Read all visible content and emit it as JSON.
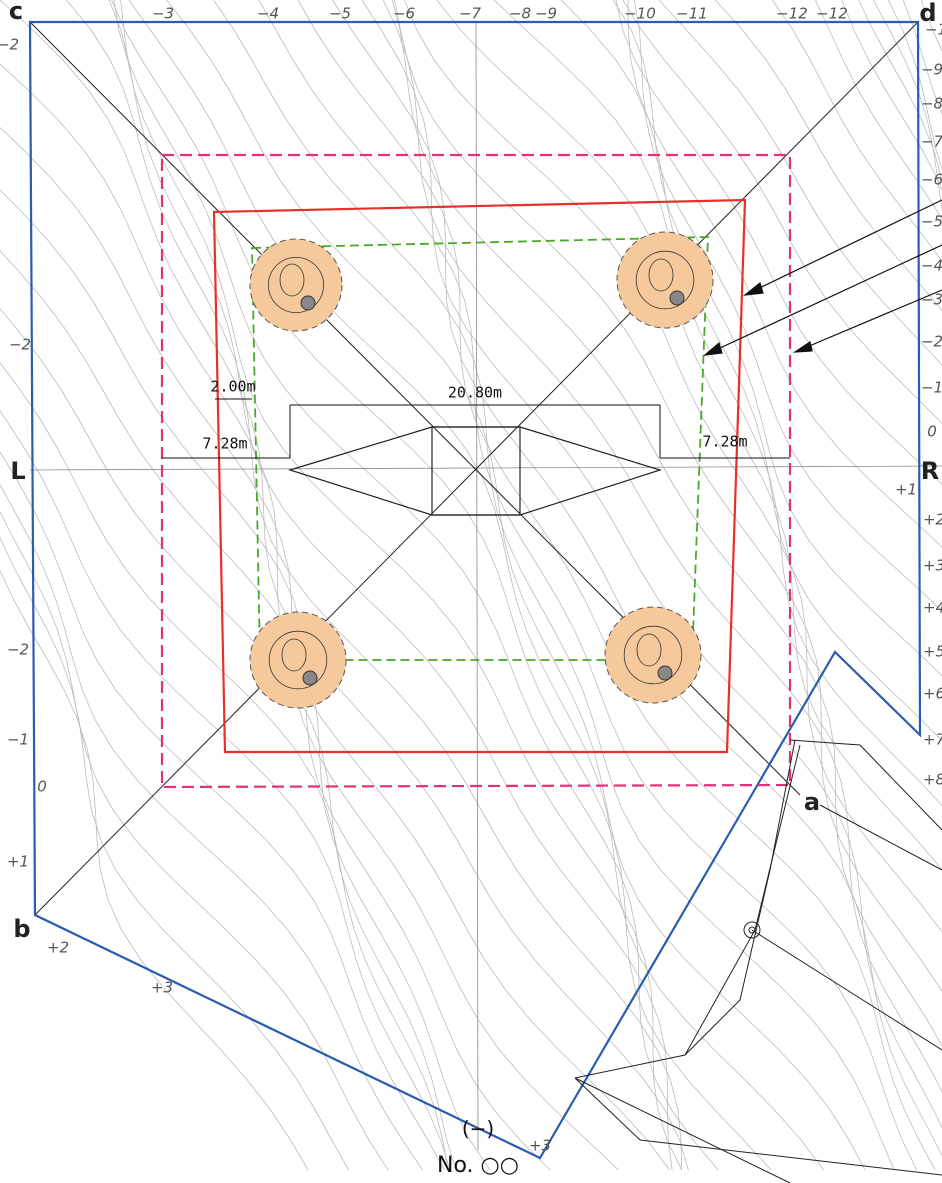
{
  "corners": {
    "c": "c",
    "d": "d",
    "b": "b",
    "a": "a",
    "L": "L",
    "R": "R"
  },
  "dimensions": {
    "inner_offset": "2.00m",
    "span": "20.80m",
    "left_offset": "7.28m",
    "right_offset": "7.28m"
  },
  "footer": {
    "sign": "(−)",
    "number": "No. ○○"
  },
  "contour_labels": {
    "top": [
      "−3",
      "−4",
      "−5",
      "−6",
      "−7",
      "−8",
      "−9",
      "−10",
      "−11",
      "−12",
      "−12"
    ],
    "right": [
      "−1",
      "−9",
      "−8",
      "−7",
      "−6",
      "−5",
      "−4",
      "−3",
      "−2",
      "−1",
      "0",
      "+1",
      "+2",
      "+3",
      "+4",
      "+5",
      "+6",
      "+7",
      "+8"
    ],
    "left": [
      "−2",
      "−2",
      "−2",
      "−1",
      "0",
      "+1",
      "+2",
      "+3"
    ],
    "bottom": [
      "+3"
    ]
  }
}
